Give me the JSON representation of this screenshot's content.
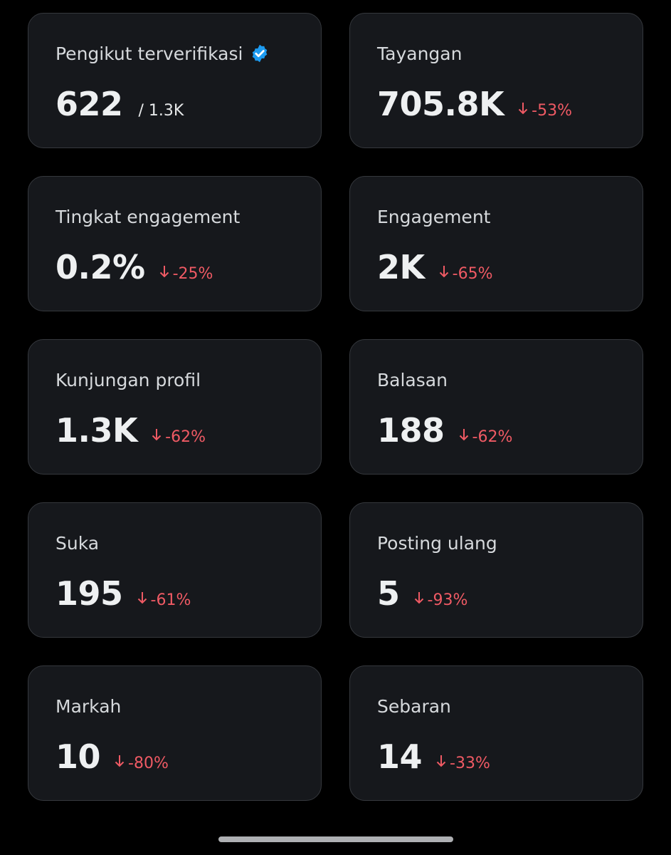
{
  "cards": [
    {
      "label": "Pengikut terverifikasi",
      "verified": true,
      "value": "622",
      "suffix": "/ 1.3K"
    },
    {
      "label": "Tayangan",
      "value": "705.8K",
      "change": "-53%"
    },
    {
      "label": "Tingkat engagement",
      "value": "0.2%",
      "change": "-25%"
    },
    {
      "label": "Engagement",
      "value": "2K",
      "change": "-65%"
    },
    {
      "label": "Kunjungan profil",
      "value": "1.3K",
      "change": "-62%"
    },
    {
      "label": "Balasan",
      "value": "188",
      "change": "-62%"
    },
    {
      "label": "Suka",
      "value": "195",
      "change": "-61%"
    },
    {
      "label": "Posting ulang",
      "value": "5",
      "change": "-93%"
    },
    {
      "label": "Markah",
      "value": "10",
      "change": "-80%"
    },
    {
      "label": "Sebaran",
      "value": "14",
      "change": "-33%"
    }
  ]
}
